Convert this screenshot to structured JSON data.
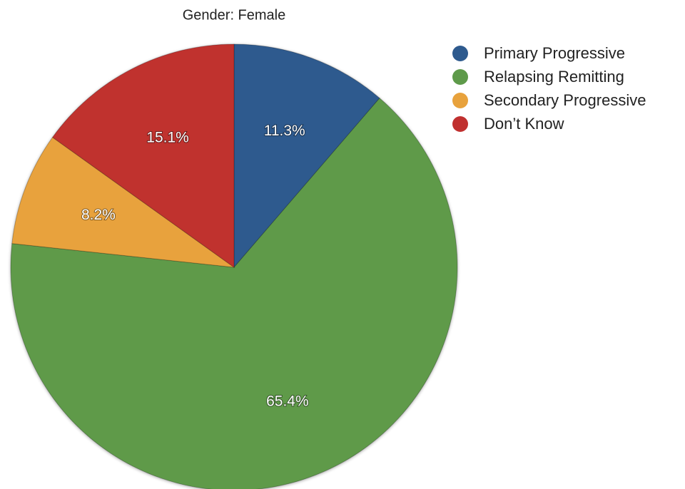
{
  "chart_data": {
    "type": "pie",
    "title": "Gender: Female",
    "categories": [
      "Primary Progressive",
      "Relapsing Remitting",
      "Secondary Progressive",
      "Don’t Know"
    ],
    "values": [
      11.3,
      65.4,
      8.2,
      15.1
    ],
    "value_labels": [
      "11.3%",
      "65.4%",
      "8.2%",
      "15.1%"
    ],
    "colors": [
      "#2e5a8e",
      "#5e9a4a",
      "#e8a23c",
      "#c0302f"
    ]
  }
}
